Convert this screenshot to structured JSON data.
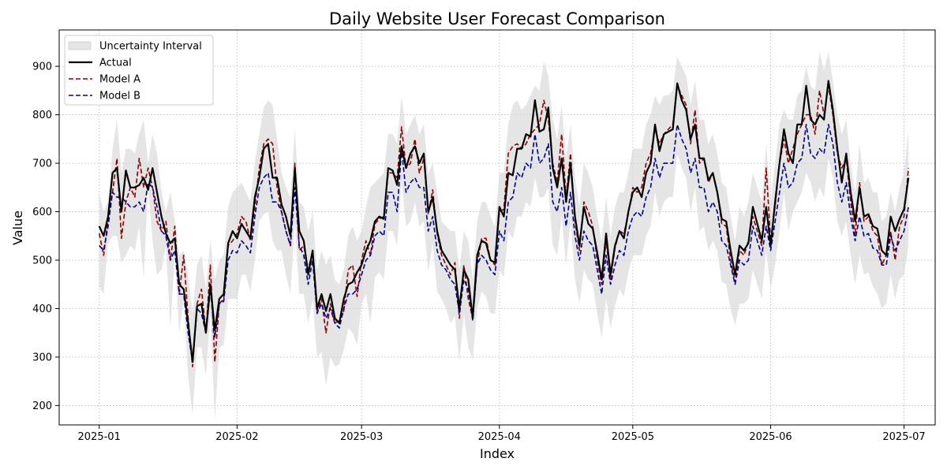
{
  "chart_data": {
    "type": "line",
    "title": "Daily Website User Forecast Comparison",
    "xlabel": "Index",
    "ylabel": "Value",
    "x_start": "2025-01-01",
    "x_end": "2025-06-29",
    "xlim": [
      "2024-12-23",
      "2025-07-08"
    ],
    "ylim": [
      160,
      975
    ],
    "x_ticks": [
      "2025-01-01",
      "2025-02-01",
      "2025-03-01",
      "2025-04-01",
      "2025-05-01",
      "2025-06-01",
      "2025-07-01"
    ],
    "x_tick_labels": [
      "2025-01",
      "2025-02",
      "2025-03",
      "2025-04",
      "2025-05",
      "2025-06",
      "2025-07"
    ],
    "y_ticks": [
      200,
      300,
      400,
      500,
      600,
      700,
      800,
      900
    ],
    "grid": true,
    "legend_position": "top-left",
    "legend": [
      "Uncertainty Interval",
      "Actual",
      "Model A",
      "Model B"
    ],
    "colors": {
      "band": "#d3d3d3",
      "actual": "#000000",
      "model_a": "#8b0000",
      "model_b": "#00008b",
      "grid": "#c8c8c8"
    },
    "series": [
      {
        "name": "Actual",
        "style": "solid",
        "values": [
          570,
          550,
          590,
          680,
          690,
          600,
          685,
          650,
          650,
          655,
          670,
          645,
          690,
          640,
          590,
          555,
          535,
          545,
          450,
          440,
          370,
          290,
          405,
          410,
          350,
          450,
          355,
          420,
          430,
          535,
          560,
          545,
          575,
          560,
          545,
          630,
          670,
          730,
          740,
          670,
          670,
          615,
          590,
          550,
          690,
          560,
          540,
          470,
          520,
          400,
          430,
          395,
          430,
          380,
          370,
          420,
          450,
          455,
          475,
          490,
          520,
          540,
          580,
          590,
          585,
          690,
          685,
          655,
          735,
          690,
          720,
          735,
          700,
          720,
          600,
          630,
          560,
          520,
          505,
          490,
          480,
          400,
          480,
          460,
          380,
          510,
          540,
          535,
          500,
          495,
          610,
          590,
          680,
          675,
          730,
          730,
          760,
          755,
          830,
          765,
          770,
          815,
          690,
          650,
          710,
          620,
          700,
          590,
          530,
          610,
          575,
          565,
          515,
          460,
          555,
          470,
          530,
          560,
          545,
          600,
          640,
          650,
          630,
          680,
          700,
          780,
          725,
          760,
          765,
          770,
          865,
          830,
          810,
          750,
          780,
          710,
          710,
          665,
          680,
          640,
          585,
          580,
          520,
          470,
          530,
          520,
          535,
          610,
          575,
          540,
          610,
          530,
          620,
          700,
          770,
          720,
          700,
          780,
          780,
          860,
          790,
          780,
          800,
          790,
          870,
          810,
          730,
          660,
          720,
          640,
          580,
          650,
          590,
          595,
          570,
          565,
          520,
          510,
          590,
          560,
          585,
          605,
          670
        ]
      },
      {
        "name": "Model A",
        "style": "dashed",
        "values": [
          555,
          510,
          585,
          640,
          710,
          545,
          620,
          650,
          630,
          710,
          650,
          690,
          650,
          580,
          560,
          580,
          500,
          570,
          430,
          510,
          380,
          280,
          410,
          440,
          350,
          490,
          290,
          410,
          420,
          530,
          540,
          555,
          590,
          580,
          540,
          610,
          690,
          740,
          750,
          740,
          650,
          600,
          560,
          530,
          700,
          520,
          530,
          480,
          520,
          390,
          420,
          350,
          410,
          370,
          375,
          395,
          480,
          490,
          425,
          500,
          540,
          510,
          575,
          585,
          590,
          680,
          680,
          670,
          775,
          690,
          700,
          750,
          680,
          710,
          595,
          645,
          555,
          510,
          490,
          470,
          495,
          380,
          490,
          420,
          380,
          490,
          545,
          545,
          500,
          490,
          600,
          605,
          720,
          735,
          740,
          730,
          740,
          760,
          770,
          780,
          830,
          790,
          700,
          660,
          760,
          630,
          720,
          580,
          520,
          620,
          600,
          570,
          500,
          450,
          540,
          460,
          525,
          560,
          555,
          595,
          650,
          640,
          650,
          700,
          720,
          770,
          740,
          760,
          770,
          780,
          860,
          840,
          820,
          740,
          810,
          700,
          710,
          660,
          680,
          640,
          575,
          570,
          500,
          455,
          520,
          510,
          540,
          590,
          560,
          530,
          690,
          540,
          610,
          700,
          750,
          700,
          730,
          760,
          780,
          800,
          800,
          760,
          850,
          800,
          860,
          800,
          720,
          690,
          710,
          620,
          550,
          660,
          580,
          590,
          560,
          550,
          490,
          510,
          560,
          500,
          570,
          590,
          690
        ]
      },
      {
        "name": "Model B",
        "style": "dashed",
        "values": [
          530,
          520,
          570,
          640,
          630,
          630,
          620,
          610,
          610,
          620,
          600,
          660,
          650,
          610,
          560,
          550,
          500,
          520,
          430,
          430,
          350,
          290,
          400,
          390,
          350,
          440,
          340,
          410,
          415,
          500,
          520,
          515,
          540,
          530,
          515,
          590,
          650,
          670,
          680,
          620,
          620,
          600,
          560,
          530,
          650,
          530,
          510,
          450,
          500,
          390,
          410,
          380,
          400,
          370,
          360,
          400,
          430,
          430,
          440,
          470,
          500,
          510,
          550,
          560,
          550,
          640,
          640,
          600,
          730,
          640,
          660,
          670,
          650,
          650,
          560,
          590,
          520,
          490,
          480,
          460,
          450,
          390,
          460,
          440,
          375,
          490,
          510,
          500,
          480,
          470,
          560,
          540,
          620,
          630,
          680,
          670,
          700,
          690,
          760,
          700,
          710,
          740,
          620,
          600,
          650,
          570,
          640,
          550,
          500,
          560,
          540,
          530,
          480,
          430,
          510,
          450,
          490,
          520,
          510,
          560,
          590,
          600,
          590,
          630,
          650,
          710,
          670,
          700,
          700,
          700,
          780,
          750,
          730,
          680,
          710,
          650,
          650,
          600,
          620,
          600,
          540,
          530,
          490,
          450,
          500,
          490,
          500,
          570,
          540,
          510,
          570,
          520,
          580,
          640,
          700,
          650,
          660,
          700,
          710,
          780,
          720,
          710,
          730,
          720,
          780,
          740,
          660,
          620,
          660,
          590,
          540,
          590,
          550,
          555,
          525,
          520,
          490,
          490,
          550,
          520,
          540,
          560,
          610
        ]
      }
    ],
    "uncertainty_interval": {
      "name": "Uncertainty Interval",
      "upper": [
        640,
        600,
        620,
        730,
        790,
        680,
        730,
        730,
        720,
        760,
        790,
        700,
        760,
        720,
        640,
        600,
        640,
        580,
        510,
        520,
        470,
        390,
        490,
        510,
        440,
        540,
        460,
        500,
        510,
        610,
        640,
        650,
        660,
        640,
        620,
        700,
        760,
        815,
        830,
        820,
        750,
        680,
        650,
        630,
        770,
        620,
        610,
        560,
        600,
        480,
        520,
        490,
        510,
        460,
        450,
        480,
        550,
        570,
        540,
        560,
        610,
        650,
        660,
        670,
        680,
        760,
        760,
        740,
        840,
        760,
        780,
        800,
        760,
        780,
        680,
        700,
        640,
        580,
        570,
        560,
        560,
        480,
        560,
        540,
        460,
        580,
        620,
        620,
        590,
        570,
        680,
        680,
        780,
        820,
        830,
        810,
        820,
        840,
        860,
        850,
        910,
        880,
        790,
        750,
        820,
        710,
        780,
        670,
        610,
        700,
        680,
        650,
        590,
        540,
        630,
        550,
        610,
        640,
        640,
        680,
        730,
        730,
        730,
        780,
        800,
        840,
        820,
        840,
        840,
        850,
        920,
        900,
        880,
        820,
        870,
        790,
        790,
        740,
        760,
        720,
        660,
        650,
        590,
        540,
        610,
        590,
        620,
        680,
        650,
        620,
        740,
        620,
        700,
        780,
        810,
        790,
        790,
        840,
        850,
        900,
        860,
        850,
        930,
        890,
        930,
        870,
        800,
        760,
        790,
        700,
        640,
        740,
        660,
        670,
        640,
        640,
        580,
        590,
        640,
        600,
        650,
        680,
        770
      ]
    }
  }
}
